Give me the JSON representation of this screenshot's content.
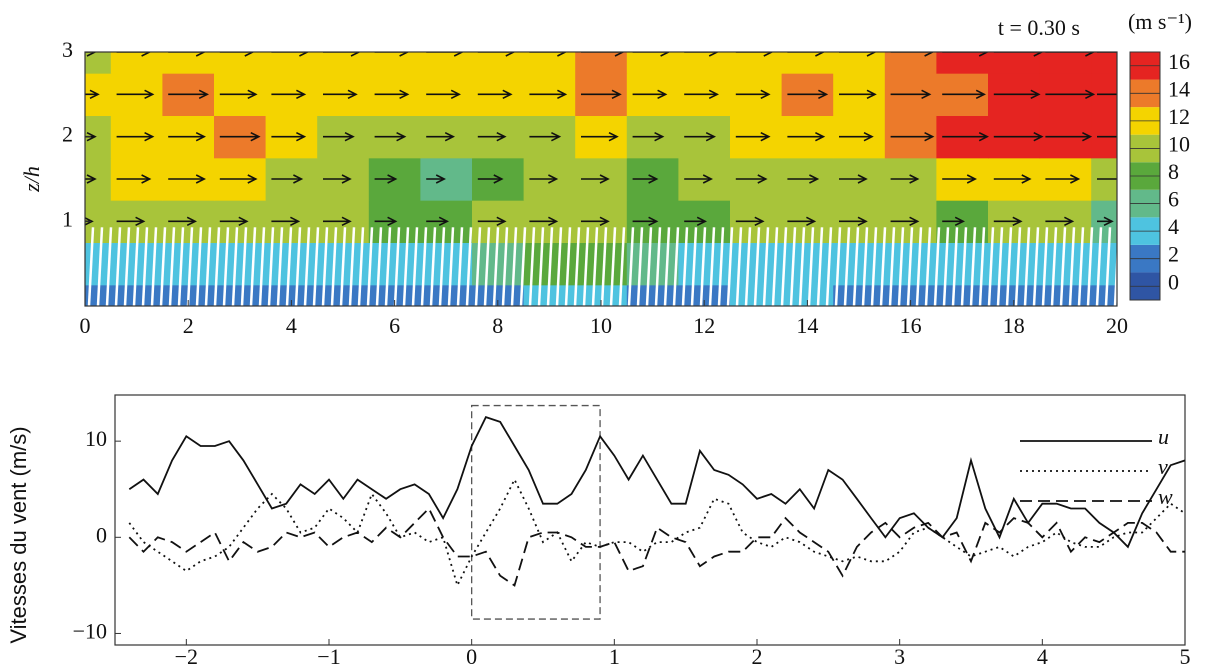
{
  "chart_data": [
    {
      "type": "contour",
      "annotation": "t = 0.30 s",
      "colorbar_title": "(m s⁻¹)",
      "y_label": "z/h",
      "x": [
        0,
        1,
        2,
        3,
        4,
        5,
        6,
        7,
        8,
        9,
        10,
        11,
        12,
        13,
        14,
        15,
        16,
        17,
        18,
        19,
        20
      ],
      "z": [
        0,
        0.5,
        1,
        1.5,
        2,
        2.5,
        3
      ],
      "values": [
        [
          1,
          1,
          1,
          1,
          1,
          1,
          1,
          1,
          2,
          3,
          4,
          1,
          1,
          3,
          3,
          1,
          1,
          1,
          1,
          1,
          1
        ],
        [
          3,
          3,
          3,
          3,
          3,
          3,
          3,
          3,
          5,
          7,
          7,
          5,
          3,
          3,
          3,
          3,
          3,
          3,
          3,
          3,
          3
        ],
        [
          9,
          9,
          9,
          9,
          9,
          9,
          7,
          7,
          9,
          9,
          9,
          8,
          7,
          9,
          9,
          9,
          9,
          7,
          9,
          9,
          5
        ],
        [
          10,
          11,
          12,
          12,
          10,
          9,
          7,
          6,
          8,
          9,
          9,
          8,
          9,
          10,
          10,
          9,
          9,
          11,
          12,
          11,
          10
        ],
        [
          10,
          12,
          12,
          13,
          11,
          10,
          10,
          9,
          9,
          10,
          12,
          10,
          10,
          11,
          12,
          11,
          14,
          15,
          16,
          15,
          15
        ],
        [
          11,
          12,
          13,
          12,
          11,
          11,
          11,
          11,
          11,
          12,
          13,
          11,
          11,
          11,
          13,
          12,
          13,
          14,
          15,
          16,
          16
        ],
        [
          10,
          11,
          12,
          11,
          12,
          12,
          11,
          12,
          12,
          12,
          14,
          12,
          11,
          12,
          12,
          12,
          14,
          15,
          16,
          16,
          16
        ]
      ],
      "xlim": [
        0,
        20
      ],
      "ylim": [
        0,
        3
      ],
      "xticks": [
        0,
        2,
        4,
        6,
        8,
        10,
        12,
        14,
        16,
        18,
        20
      ],
      "yticks": [
        1,
        2,
        3
      ],
      "colorbar": {
        "lim": [
          -1,
          17
        ],
        "ticks": [
          0,
          2,
          4,
          6,
          8,
          10,
          12,
          14,
          16
        ],
        "colors": [
          "#2f55a4",
          "#3a78c4",
          "#4ec3e0",
          "#62b98a",
          "#5aa83c",
          "#a8c43a",
          "#f4d400",
          "#ec7a2a",
          "#e52421"
        ]
      }
    },
    {
      "type": "line",
      "y_label": "Vitesses du vent (m/s)",
      "x": [
        -2.4,
        -2.3,
        -2.2,
        -2.1,
        -2.0,
        -1.9,
        -1.8,
        -1.7,
        -1.6,
        -1.5,
        -1.4,
        -1.3,
        -1.2,
        -1.1,
        -1.0,
        -0.9,
        -0.8,
        -0.7,
        -0.6,
        -0.5,
        -0.4,
        -0.3,
        -0.2,
        -0.1,
        0.0,
        0.1,
        0.2,
        0.3,
        0.4,
        0.5,
        0.6,
        0.7,
        0.8,
        0.9,
        1.0,
        1.1,
        1.2,
        1.3,
        1.4,
        1.5,
        1.6,
        1.7,
        1.8,
        1.9,
        2.0,
        2.1,
        2.2,
        2.3,
        2.4,
        2.5,
        2.6,
        2.7,
        2.8,
        2.9,
        3.0,
        3.1,
        3.2,
        3.3,
        3.4,
        3.5,
        3.6,
        3.7,
        3.8,
        3.9,
        4.0,
        4.1,
        4.2,
        4.3,
        4.4,
        4.5,
        4.6,
        4.7,
        4.8,
        4.9,
        5.0
      ],
      "series": [
        {
          "name": "u",
          "color": "#111111",
          "dash": "solid",
          "values": [
            5,
            6,
            4.5,
            8,
            10.5,
            9.5,
            9.5,
            10,
            8,
            5.5,
            3,
            3.5,
            5.5,
            4.5,
            6,
            4,
            6,
            5,
            4,
            5,
            5.5,
            4.5,
            2,
            5,
            9.5,
            12.5,
            12,
            9.5,
            7,
            3.5,
            3.5,
            4.5,
            7,
            10.5,
            8.5,
            6,
            8.5,
            6,
            3.5,
            3.5,
            9,
            7,
            6.5,
            5.5,
            4,
            4.5,
            3.5,
            5,
            3,
            7,
            6,
            4,
            2,
            0,
            2,
            2.5,
            1,
            0,
            2,
            8,
            3,
            0,
            4,
            1.5,
            3.5,
            3.5,
            3,
            3,
            1.5,
            0.5,
            -1,
            2.5,
            5,
            7.5,
            8
          ]
        },
        {
          "name": "v",
          "color": "#111111",
          "dash": "dotted",
          "values": [
            1.5,
            -0.5,
            -1.5,
            -2.5,
            -3.5,
            -2.5,
            -2,
            -1,
            1,
            3,
            4.5,
            3,
            0.5,
            1,
            3,
            2,
            0.5,
            4.5,
            2.5,
            0,
            0.5,
            -0.5,
            0,
            -5,
            -2,
            0.5,
            3,
            6,
            3,
            -0.5,
            0.5,
            -2.5,
            -0.5,
            -1,
            -0.5,
            -0.5,
            -1.5,
            -0.5,
            -0.5,
            0.5,
            1,
            4,
            3.5,
            0.5,
            -0.5,
            -1,
            0,
            -0.5,
            -1.5,
            -2,
            -2.5,
            -2,
            -2.5,
            -2.5,
            -1.5,
            0.5,
            1,
            0,
            -1,
            -2,
            -1.5,
            -1,
            -2,
            -1,
            -0.5,
            0.5,
            -0.5,
            -1,
            -1,
            0,
            0.5,
            0.5,
            2,
            3.5,
            2.5
          ]
        },
        {
          "name": "w",
          "color": "#111111",
          "dash": "dashed",
          "values": [
            0,
            -1.5,
            0,
            -0.5,
            -1.5,
            -0.5,
            0.5,
            -2.5,
            -0.5,
            -1.5,
            -1,
            0.5,
            0,
            0.5,
            -1,
            0,
            0.5,
            -0.5,
            1,
            0,
            1.5,
            3,
            0,
            -2,
            -2,
            -1.5,
            -4,
            -5,
            0,
            0.5,
            0.5,
            0,
            -1,
            -1,
            -0.5,
            -3.5,
            -3,
            1,
            0,
            -0.5,
            -3,
            -2,
            -1.5,
            -1.5,
            0,
            0,
            2,
            0.5,
            -0.5,
            -1.5,
            -4,
            -1,
            0.5,
            1.5,
            0,
            1,
            1.5,
            0,
            0.5,
            -2.5,
            1.5,
            0.5,
            2,
            1.5,
            0,
            1.5,
            -1.5,
            0,
            -0.5,
            0.5,
            1.5,
            1.5,
            0.5,
            -1.5,
            -1.5
          ]
        }
      ],
      "highlight": {
        "x": [
          0,
          0.9
        ],
        "y": [
          -8.5,
          13.7
        ]
      },
      "xlim": [
        -2.5,
        5
      ],
      "ylim": [
        -11.2,
        14.8
      ],
      "xticks": [
        {
          "value": -2,
          "label": "−2"
        },
        {
          "value": -1,
          "label": "−1"
        },
        0,
        1,
        2,
        3,
        4,
        5
      ],
      "yticks": [
        {
          "value": -10,
          "label": "−10"
        },
        0,
        10
      ]
    }
  ]
}
